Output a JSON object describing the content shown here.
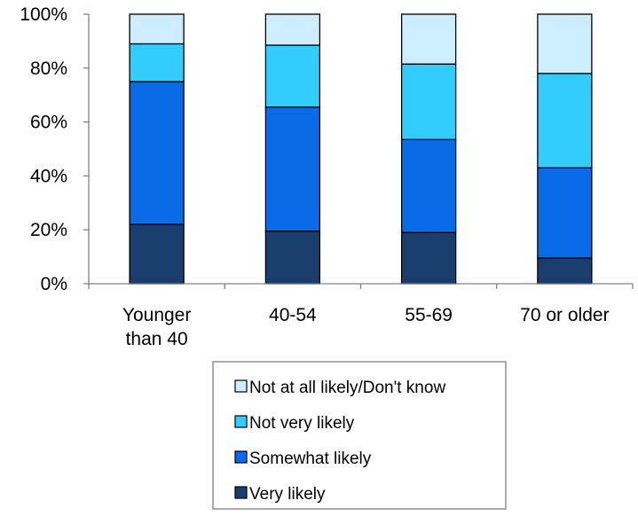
{
  "chart_data": {
    "type": "bar",
    "stacked": true,
    "percent": true,
    "title": "",
    "xlabel": "",
    "ylabel": "",
    "ylim": [
      0,
      100
    ],
    "yticks": [
      "0%",
      "20%",
      "40%",
      "60%",
      "80%",
      "100%"
    ],
    "categories": [
      [
        "Younger",
        "than 40"
      ],
      [
        "40-54"
      ],
      [
        "55-69"
      ],
      [
        "70 or older"
      ]
    ],
    "series": [
      {
        "name": "Very likely",
        "color": "#1a3f6e",
        "values": [
          22,
          19.5,
          19,
          9.5
        ]
      },
      {
        "name": "Somewhat likely",
        "color": "#0a6be9",
        "values": [
          53,
          46,
          34.5,
          33.5
        ]
      },
      {
        "name": "Not very likely",
        "color": "#33ccff",
        "values": [
          14,
          23,
          28,
          35
        ]
      },
      {
        "name": "Not at all likely/Don't know",
        "color": "#cceeff",
        "values": [
          11,
          11.5,
          18.5,
          22
        ]
      }
    ],
    "legend_position": "bottom",
    "grid": false
  }
}
